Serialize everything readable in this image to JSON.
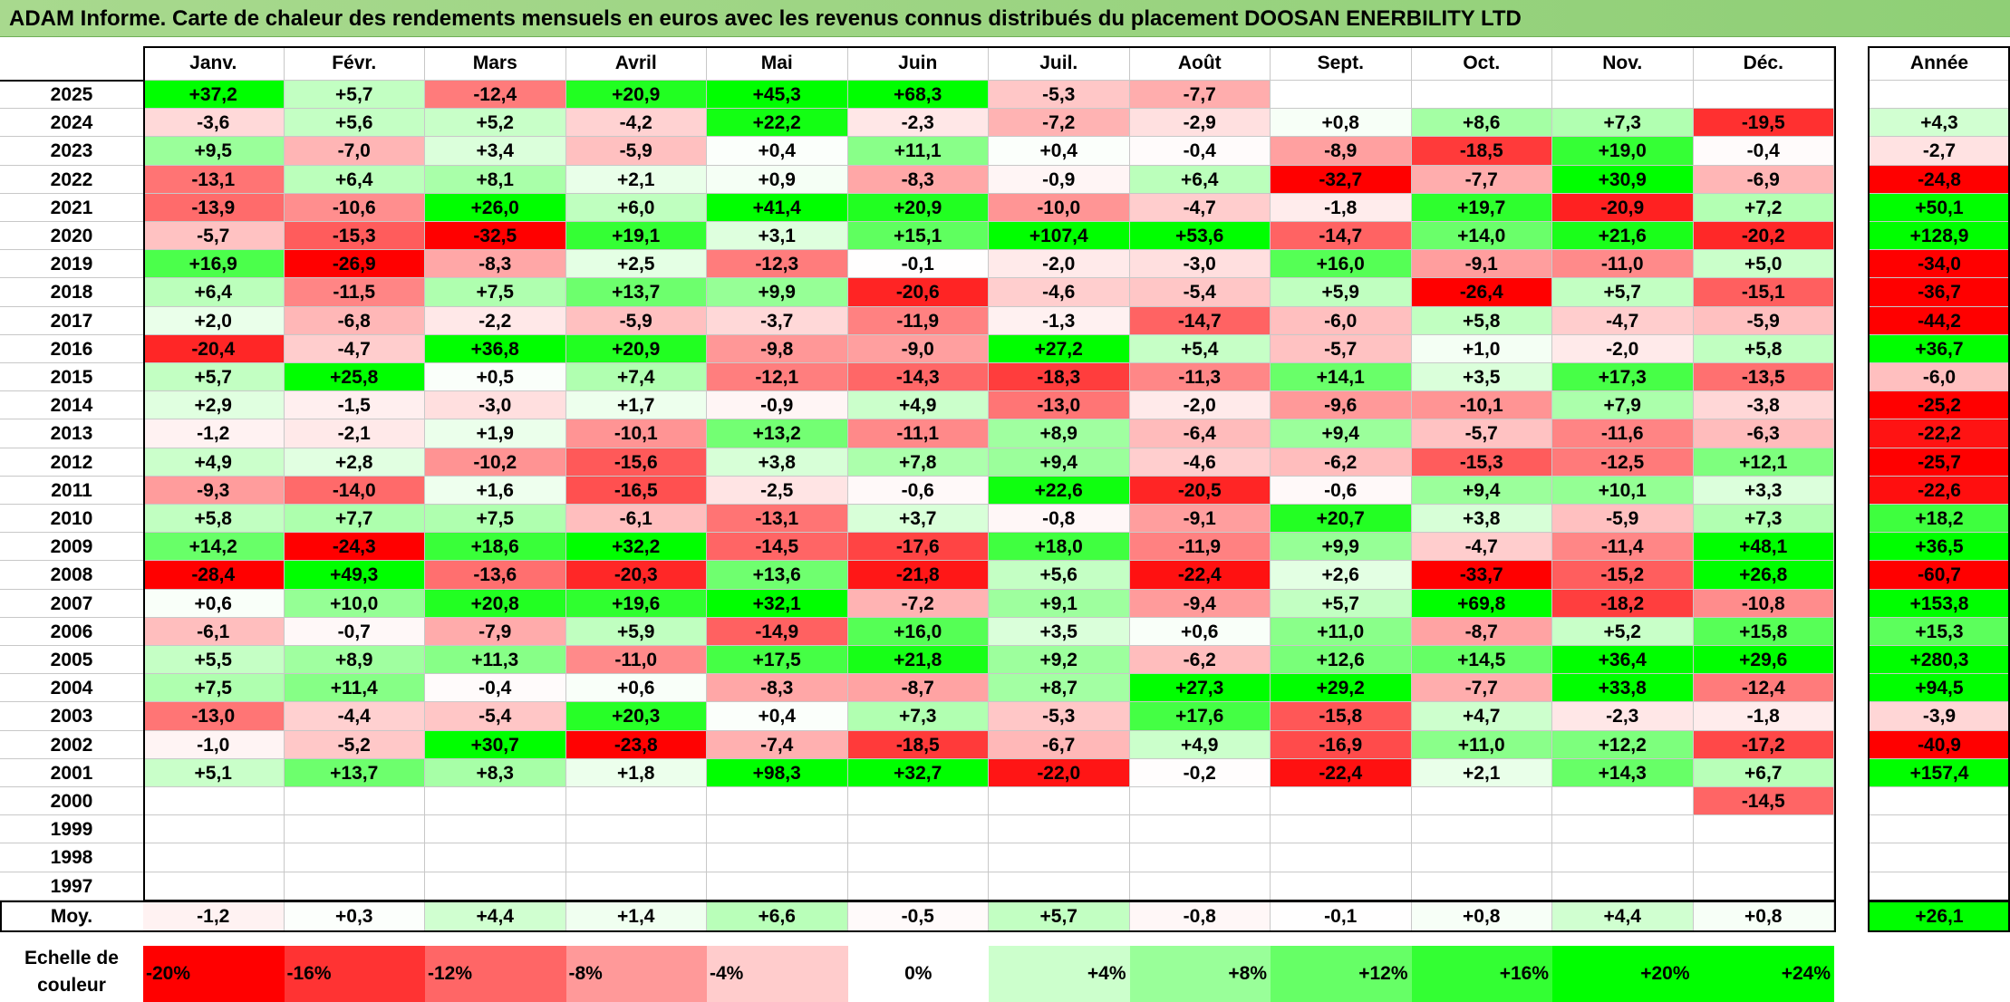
{
  "title": "ADAM Informe. Carte de chaleur des rendements mensuels en euros avec les revenus connus distribués du placement DOOSAN ENERBILITY LTD",
  "chart_data": {
    "type": "heatmap",
    "title": "ADAM Informe. Carte de chaleur des rendements mensuels en euros avec les revenus connus distribués du placement DOOSAN ENERBILITY LTD",
    "months": [
      "Janv.",
      "Févr.",
      "Mars",
      "Avril",
      "Mai",
      "Juin",
      "Juil.",
      "Août",
      "Sept.",
      "Oct.",
      "Nov.",
      "Déc."
    ],
    "year_header": "Année",
    "rows": [
      {
        "year": "2025",
        "values": [
          "+37,2",
          "+5,7",
          "-12,4",
          "+20,9",
          "+45,3",
          "+68,3",
          "-5,3",
          "-7,7",
          "",
          "",
          "",
          ""
        ],
        "annual": ""
      },
      {
        "year": "2024",
        "values": [
          "-3,6",
          "+5,6",
          "+5,2",
          "-4,2",
          "+22,2",
          "-2,3",
          "-7,2",
          "-2,9",
          "+0,8",
          "+8,6",
          "+7,3",
          "-19,5"
        ],
        "annual": "+4,3"
      },
      {
        "year": "2023",
        "values": [
          "+9,5",
          "-7,0",
          "+3,4",
          "-5,9",
          "+0,4",
          "+11,1",
          "+0,4",
          "-0,4",
          "-8,9",
          "-18,5",
          "+19,0",
          "-0,4"
        ],
        "annual": "-2,7"
      },
      {
        "year": "2022",
        "values": [
          "-13,1",
          "+6,4",
          "+8,1",
          "+2,1",
          "+0,9",
          "-8,3",
          "-0,9",
          "+6,4",
          "-32,7",
          "-7,7",
          "+30,9",
          "-6,9"
        ],
        "annual": "-24,8"
      },
      {
        "year": "2021",
        "values": [
          "-13,9",
          "-10,6",
          "+26,0",
          "+6,0",
          "+41,4",
          "+20,9",
          "-10,0",
          "-4,7",
          "-1,8",
          "+19,7",
          "-20,9",
          "+7,2"
        ],
        "annual": "+50,1"
      },
      {
        "year": "2020",
        "values": [
          "-5,7",
          "-15,3",
          "-32,5",
          "+19,1",
          "+3,1",
          "+15,1",
          "+107,4",
          "+53,6",
          "-14,7",
          "+14,0",
          "+21,6",
          "-20,2"
        ],
        "annual": "+128,9"
      },
      {
        "year": "2019",
        "values": [
          "+16,9",
          "-26,9",
          "-8,3",
          "+2,5",
          "-12,3",
          "-0,1",
          "-2,0",
          "-3,0",
          "+16,0",
          "-9,1",
          "-11,0",
          "+5,0"
        ],
        "annual": "-34,0"
      },
      {
        "year": "2018",
        "values": [
          "+6,4",
          "-11,5",
          "+7,5",
          "+13,7",
          "+9,9",
          "-20,6",
          "-4,6",
          "-5,4",
          "+5,9",
          "-26,4",
          "+5,7",
          "-15,1"
        ],
        "annual": "-36,7"
      },
      {
        "year": "2017",
        "values": [
          "+2,0",
          "-6,8",
          "-2,2",
          "-5,9",
          "-3,7",
          "-11,9",
          "-1,3",
          "-14,7",
          "-6,0",
          "+5,8",
          "-4,7",
          "-5,9"
        ],
        "annual": "-44,2"
      },
      {
        "year": "2016",
        "values": [
          "-20,4",
          "-4,7",
          "+36,8",
          "+20,9",
          "-9,8",
          "-9,0",
          "+27,2",
          "+5,4",
          "-5,7",
          "+1,0",
          "-2,0",
          "+5,8"
        ],
        "annual": "+36,7"
      },
      {
        "year": "2015",
        "values": [
          "+5,7",
          "+25,8",
          "+0,5",
          "+7,4",
          "-12,1",
          "-14,3",
          "-18,3",
          "-11,3",
          "+14,1",
          "+3,5",
          "+17,3",
          "-13,5"
        ],
        "annual": "-6,0"
      },
      {
        "year": "2014",
        "values": [
          "+2,9",
          "-1,5",
          "-3,0",
          "+1,7",
          "-0,9",
          "+4,9",
          "-13,0",
          "-2,0",
          "-9,6",
          "-10,1",
          "+7,9",
          "-3,8"
        ],
        "annual": "-25,2"
      },
      {
        "year": "2013",
        "values": [
          "-1,2",
          "-2,1",
          "+1,9",
          "-10,1",
          "+13,2",
          "-11,1",
          "+8,9",
          "-6,4",
          "+9,4",
          "-5,7",
          "-11,6",
          "-6,3"
        ],
        "annual": "-22,2"
      },
      {
        "year": "2012",
        "values": [
          "+4,9",
          "+2,8",
          "-10,2",
          "-15,6",
          "+3,8",
          "+7,8",
          "+9,4",
          "-4,6",
          "-6,2",
          "-15,3",
          "-12,5",
          "+12,1"
        ],
        "annual": "-25,7"
      },
      {
        "year": "2011",
        "values": [
          "-9,3",
          "-14,0",
          "+1,6",
          "-16,5",
          "-2,5",
          "-0,6",
          "+22,6",
          "-20,5",
          "-0,6",
          "+9,4",
          "+10,1",
          "+3,3"
        ],
        "annual": "-22,6"
      },
      {
        "year": "2010",
        "values": [
          "+5,8",
          "+7,7",
          "+7,5",
          "-6,1",
          "-13,1",
          "+3,7",
          "-0,8",
          "-9,1",
          "+20,7",
          "+3,8",
          "-5,9",
          "+7,3"
        ],
        "annual": "+18,2"
      },
      {
        "year": "2009",
        "values": [
          "+14,2",
          "-24,3",
          "+18,6",
          "+32,2",
          "-14,5",
          "-17,6",
          "+18,0",
          "-11,9",
          "+9,9",
          "-4,7",
          "-11,4",
          "+48,1"
        ],
        "annual": "+36,5"
      },
      {
        "year": "2008",
        "values": [
          "-28,4",
          "+49,3",
          "-13,6",
          "-20,3",
          "+13,6",
          "-21,8",
          "+5,6",
          "-22,4",
          "+2,6",
          "-33,7",
          "-15,2",
          "+26,8"
        ],
        "annual": "-60,7"
      },
      {
        "year": "2007",
        "values": [
          "+0,6",
          "+10,0",
          "+20,8",
          "+19,6",
          "+32,1",
          "-7,2",
          "+9,1",
          "-9,4",
          "+5,7",
          "+69,8",
          "-18,2",
          "-10,8"
        ],
        "annual": "+153,8"
      },
      {
        "year": "2006",
        "values": [
          "-6,1",
          "-0,7",
          "-7,9",
          "+5,9",
          "-14,9",
          "+16,0",
          "+3,5",
          "+0,6",
          "+11,0",
          "-8,7",
          "+5,2",
          "+15,8"
        ],
        "annual": "+15,3"
      },
      {
        "year": "2005",
        "values": [
          "+5,5",
          "+8,9",
          "+11,3",
          "-11,0",
          "+17,5",
          "+21,8",
          "+9,2",
          "-6,2",
          "+12,6",
          "+14,5",
          "+36,4",
          "+29,6"
        ],
        "annual": "+280,3"
      },
      {
        "year": "2004",
        "values": [
          "+7,5",
          "+11,4",
          "-0,4",
          "+0,6",
          "-8,3",
          "-8,7",
          "+8,7",
          "+27,3",
          "+29,2",
          "-7,7",
          "+33,8",
          "-12,4"
        ],
        "annual": "+94,5"
      },
      {
        "year": "2003",
        "values": [
          "-13,0",
          "-4,4",
          "-5,4",
          "+20,3",
          "+0,4",
          "+7,3",
          "-5,3",
          "+17,6",
          "-15,8",
          "+4,7",
          "-2,3",
          "-1,8"
        ],
        "annual": "-3,9"
      },
      {
        "year": "2002",
        "values": [
          "-1,0",
          "-5,2",
          "+30,7",
          "-23,8",
          "-7,4",
          "-18,5",
          "-6,7",
          "+4,9",
          "-16,9",
          "+11,0",
          "+12,2",
          "-17,2"
        ],
        "annual": "-40,9"
      },
      {
        "year": "2001",
        "values": [
          "+5,1",
          "+13,7",
          "+8,3",
          "+1,8",
          "+98,3",
          "+32,7",
          "-22,0",
          "-0,2",
          "-22,4",
          "+2,1",
          "+14,3",
          "+6,7"
        ],
        "annual": "+157,4"
      },
      {
        "year": "2000",
        "values": [
          "",
          "",
          "",
          "",
          "",
          "",
          "",
          "",
          "",
          "",
          "",
          "-14,5"
        ],
        "annual": ""
      },
      {
        "year": "1999",
        "values": [
          "",
          "",
          "",
          "",
          "",
          "",
          "",
          "",
          "",
          "",
          "",
          ""
        ],
        "annual": ""
      },
      {
        "year": "1998",
        "values": [
          "",
          "",
          "",
          "",
          "",
          "",
          "",
          "",
          "",
          "",
          "",
          ""
        ],
        "annual": ""
      },
      {
        "year": "1997",
        "values": [
          "",
          "",
          "",
          "",
          "",
          "",
          "",
          "",
          "",
          "",
          "",
          ""
        ],
        "annual": ""
      }
    ],
    "average": {
      "label": "Moy.",
      "values": [
        "-1,2",
        "+0,3",
        "+4,4",
        "+1,4",
        "+6,6",
        "-0,5",
        "+5,7",
        "-0,8",
        "-0,1",
        "+0,8",
        "+4,4",
        "+0,8"
      ],
      "annual": "+26,1"
    },
    "color_scale": {
      "label_line1": "Echelle de",
      "label_line2": "couleur",
      "steps": [
        "-20%",
        "-16%",
        "-12%",
        "-8%",
        "-4%",
        "0%",
        "+4%",
        "+8%",
        "+12%",
        "+16%",
        "+20%",
        "+24%"
      ]
    },
    "colors": {
      "negative": "#ff0000",
      "neutral": "#ffffff",
      "positive": "#00ff00"
    }
  }
}
